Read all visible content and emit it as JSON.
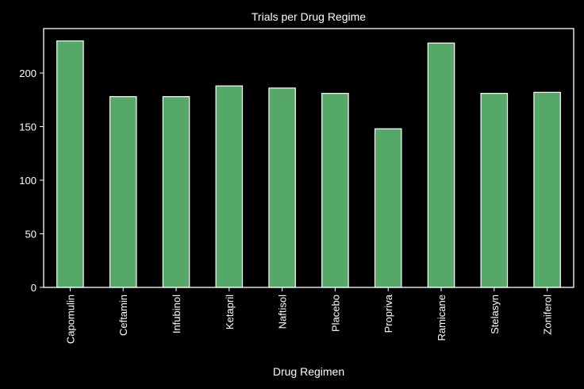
{
  "chart_data": {
    "type": "bar",
    "title": "Trials per Drug Regime",
    "xlabel": "Drug Regimen",
    "ylabel": "",
    "categories": [
      "Capomulin",
      "Ceftamin",
      "Infubinol",
      "Ketapril",
      "Naftisol",
      "Placebo",
      "Propriva",
      "Ramicane",
      "Stelasyn",
      "Zoniferol"
    ],
    "values": [
      230,
      178,
      178,
      188,
      186,
      181,
      148,
      228,
      181,
      182
    ],
    "ylim": [
      0,
      241.5
    ],
    "yticks": [
      0,
      50,
      100,
      150,
      200
    ],
    "grid": false,
    "legend": "none",
    "colors": {
      "background": "#000000",
      "bar_fill": "#55a868",
      "bar_edge": "#ffffff",
      "axis": "#ffffff",
      "text": "#ffffff"
    }
  }
}
